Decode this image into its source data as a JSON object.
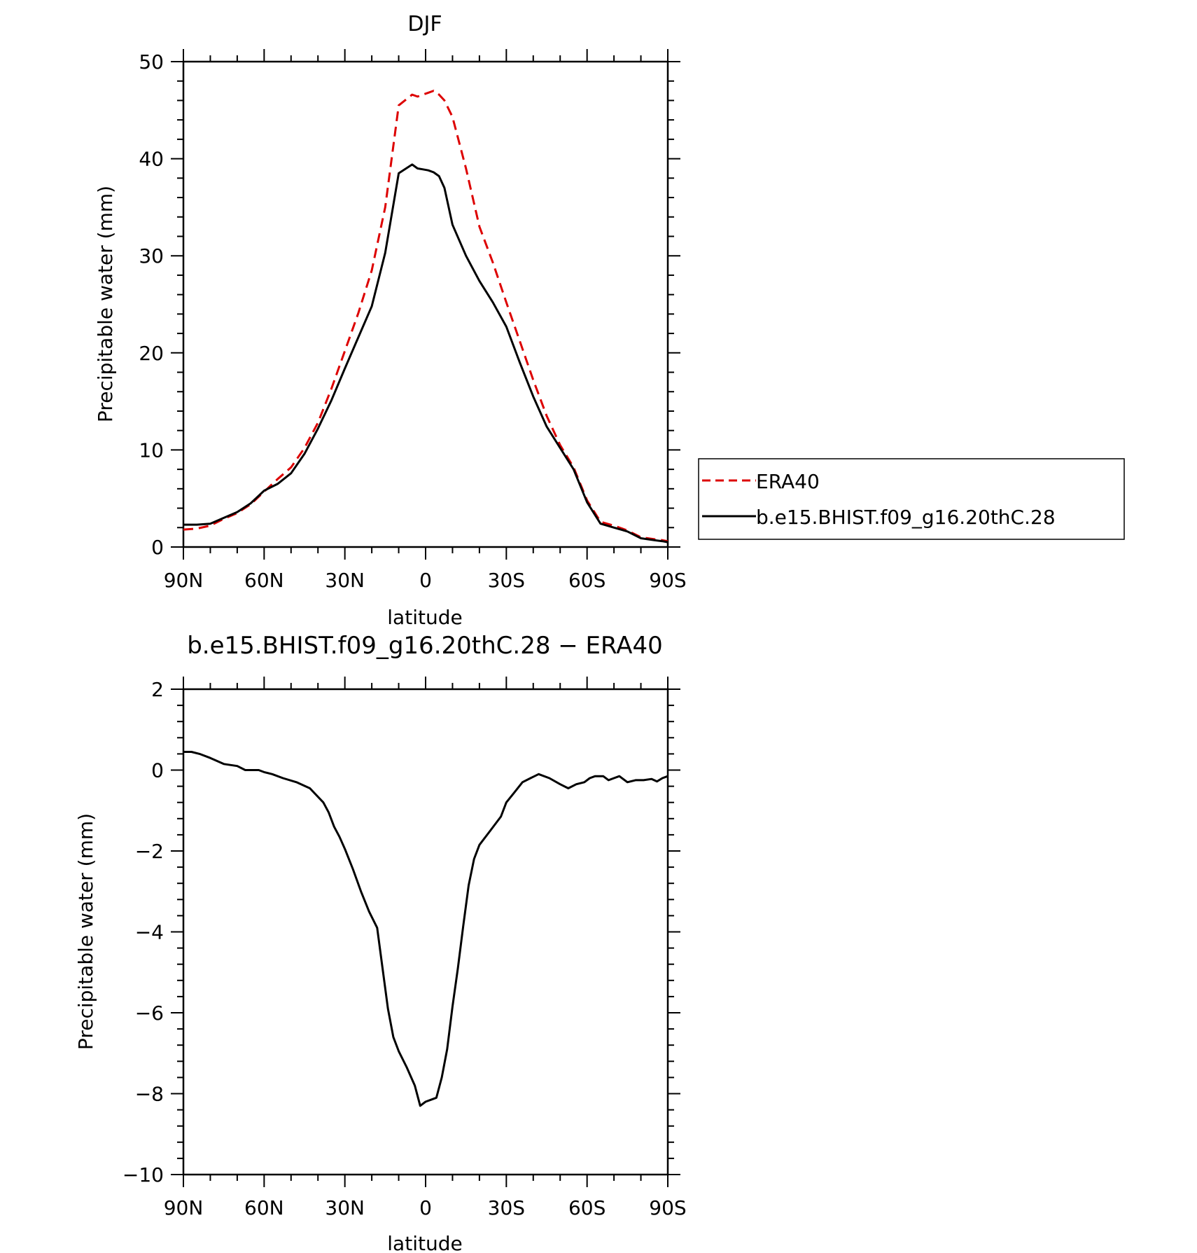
{
  "chart_data": [
    {
      "type": "line",
      "title": "DJF",
      "xlabel": "latitude",
      "ylabel": "Precipitable water (mm)",
      "xlim": [
        90,
        -90
      ],
      "ylim": [
        0,
        50
      ],
      "xticks": [
        90,
        60,
        30,
        0,
        -30,
        -60,
        -90
      ],
      "xtick_labels": [
        "90N",
        "60N",
        "30N",
        "0",
        "30S",
        "60S",
        "90S"
      ],
      "yticks": [
        0,
        10,
        20,
        30,
        40,
        50
      ],
      "ytick_labels": [
        "0",
        "10",
        "20",
        "30",
        "40",
        "50"
      ],
      "legend_position": "right",
      "series": [
        {
          "name": "ERA40",
          "color": "#dd0000",
          "dash": "dashed",
          "x": [
            90,
            85,
            80,
            75,
            70,
            65,
            60,
            55,
            50,
            45,
            40,
            35,
            30,
            25,
            20,
            15,
            10,
            5,
            3,
            1,
            -1,
            -3,
            -5,
            -7,
            -10,
            -15,
            -20,
            -25,
            -30,
            -35,
            -40,
            -45,
            -50,
            -55,
            -60,
            -65,
            -70,
            -75,
            -80,
            -85,
            -88,
            -90
          ],
          "y": [
            1.8,
            1.9,
            2.2,
            2.9,
            3.5,
            4.4,
            5.7,
            7.0,
            8.2,
            10.2,
            12.8,
            16.3,
            20.2,
            24.1,
            28.5,
            35.0,
            45.5,
            46.6,
            46.4,
            46.6,
            46.8,
            47.0,
            46.6,
            46.0,
            44.3,
            39.0,
            33.0,
            29.3,
            25.2,
            21.2,
            17.2,
            13.5,
            10.5,
            8.2,
            4.8,
            2.6,
            2.2,
            1.7,
            1.0,
            0.8,
            0.7,
            0.6
          ]
        },
        {
          "name": "b.e15.BHIST.f09_g16.20thC.28",
          "color": "#000000",
          "dash": "solid",
          "x": [
            90,
            85,
            80,
            75,
            70,
            65,
            60,
            55,
            50,
            45,
            40,
            35,
            30,
            25,
            20,
            15,
            10,
            5,
            3,
            1,
            -1,
            -3,
            -5,
            -7,
            -10,
            -15,
            -20,
            -25,
            -30,
            -35,
            -40,
            -45,
            -50,
            -55,
            -60,
            -65,
            -70,
            -75,
            -80,
            -85,
            -88,
            -90
          ],
          "y": [
            2.3,
            2.3,
            2.4,
            3.0,
            3.6,
            4.5,
            5.8,
            6.5,
            7.6,
            9.6,
            12.2,
            15.1,
            18.4,
            21.6,
            24.8,
            30.3,
            38.5,
            39.4,
            39.0,
            38.9,
            38.8,
            38.6,
            38.2,
            37.0,
            33.2,
            30.0,
            27.4,
            25.2,
            22.7,
            19.0,
            15.5,
            12.4,
            10.2,
            8.0,
            4.6,
            2.4,
            2.0,
            1.6,
            0.9,
            0.7,
            0.6,
            0.5
          ]
        }
      ]
    },
    {
      "type": "line",
      "title": "b.e15.BHIST.f09_g16.20thC.28 − ERA40",
      "xlabel": "latitude",
      "ylabel": "Precipitable water (mm)",
      "xlim": [
        90,
        -90
      ],
      "ylim": [
        -10,
        2
      ],
      "xticks": [
        90,
        60,
        30,
        0,
        -30,
        -60,
        -90
      ],
      "xtick_labels": [
        "90N",
        "60N",
        "30N",
        "0",
        "30S",
        "60S",
        "90S"
      ],
      "yticks": [
        -10,
        -8,
        -6,
        -4,
        -2,
        0,
        2
      ],
      "ytick_labels": [
        "−10",
        "−8",
        "−6",
        "−4",
        "−2",
        "0",
        "2"
      ],
      "series": [
        {
          "color": "#000000",
          "dash": "solid",
          "x": [
            90,
            87,
            84,
            80,
            75,
            70,
            67,
            62,
            60,
            57,
            53,
            48,
            43,
            38,
            36,
            34,
            32,
            30,
            27,
            24,
            21,
            18,
            16,
            14,
            12,
            10,
            7,
            4,
            2,
            0,
            -2,
            -4,
            -6,
            -8,
            -10,
            -12,
            -14,
            -16,
            -18,
            -20,
            -24,
            -28,
            -30,
            -33,
            -36,
            -39,
            -42,
            -46,
            -50,
            -53,
            -56,
            -59,
            -61,
            -63,
            -66,
            -68,
            -70,
            -72,
            -75,
            -78,
            -81,
            -84,
            -86,
            -88,
            -90
          ],
          "y": [
            0.45,
            0.45,
            0.4,
            0.3,
            0.15,
            0.1,
            0.0,
            0.0,
            -0.05,
            -0.1,
            -0.2,
            -0.3,
            -0.45,
            -0.8,
            -1.05,
            -1.4,
            -1.65,
            -1.95,
            -2.45,
            -3.0,
            -3.5,
            -3.9,
            -4.9,
            -5.9,
            -6.6,
            -6.95,
            -7.35,
            -7.8,
            -8.3,
            -8.2,
            -8.15,
            -8.1,
            -7.6,
            -6.9,
            -5.85,
            -4.9,
            -3.85,
            -2.85,
            -2.2,
            -1.85,
            -1.5,
            -1.15,
            -0.8,
            -0.55,
            -0.3,
            -0.2,
            -0.1,
            -0.2,
            -0.35,
            -0.45,
            -0.35,
            -0.3,
            -0.2,
            -0.15,
            -0.15,
            -0.25,
            -0.2,
            -0.15,
            -0.3,
            -0.25,
            -0.25,
            -0.22,
            -0.28,
            -0.2,
            -0.15
          ]
        }
      ]
    }
  ],
  "legend": {
    "items": [
      "ERA40",
      "b.e15.BHIST.f09_g16.20thC.28"
    ]
  }
}
